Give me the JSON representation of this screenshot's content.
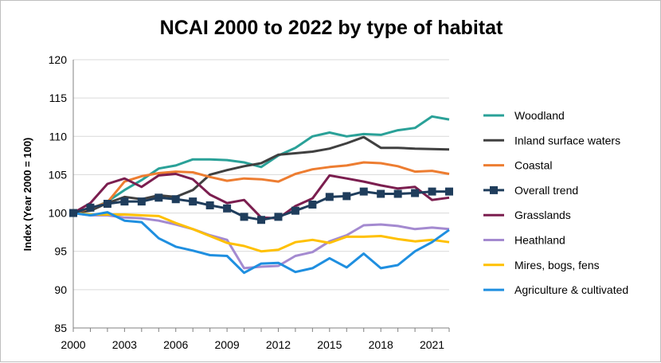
{
  "chart_data": {
    "type": "line",
    "title": "NCAI 2000 to 2022 by type of habitat",
    "ylabel": "Index (Year 2000 = 100)",
    "xlabel": "",
    "ylim": [
      85,
      120
    ],
    "xlim": [
      2000,
      2022
    ],
    "yticks": [
      85,
      90,
      95,
      100,
      105,
      110,
      115,
      120
    ],
    "xticks": [
      2000,
      2003,
      2006,
      2009,
      2012,
      2015,
      2018,
      2021
    ],
    "grid": "horizontal",
    "legend_position": "right",
    "x": [
      2000,
      2001,
      2002,
      2003,
      2004,
      2005,
      2006,
      2007,
      2008,
      2009,
      2010,
      2011,
      2012,
      2013,
      2014,
      2015,
      2016,
      2017,
      2018,
      2019,
      2020,
      2021,
      2022
    ],
    "series": [
      {
        "name": "Woodland",
        "color": "#2aa198",
        "values": [
          100,
          100.5,
          101.5,
          103,
          104.3,
          105.8,
          106.2,
          107,
          107,
          106.9,
          106.6,
          106,
          107.5,
          108.5,
          110,
          110.5,
          110,
          110.3,
          110.2,
          110.8,
          111.1,
          112.6,
          112.2
        ]
      },
      {
        "name": "Inland surface waters",
        "color": "#404040",
        "values": [
          100,
          100.3,
          101.3,
          102.1,
          101.8,
          102.3,
          102.1,
          103,
          105,
          105.6,
          106.1,
          106.5,
          107.6,
          107.8,
          108,
          108.4,
          109.1,
          109.9,
          108.5,
          108.5,
          108.4,
          108.35,
          108.3
        ]
      },
      {
        "name": "Coastal",
        "color": "#ed7d31",
        "values": [
          100,
          100.6,
          101.4,
          104.1,
          104.8,
          105.2,
          105.4,
          105.3,
          104.7,
          104.2,
          104.5,
          104.4,
          104.1,
          105.1,
          105.7,
          106,
          106.2,
          106.6,
          106.5,
          106.1,
          105.4,
          105.5,
          105.1
        ]
      },
      {
        "name": "Overall trend",
        "color": "#1f3d5c",
        "marker": "square",
        "values": [
          100,
          100.7,
          101.2,
          101.5,
          101.5,
          102,
          101.8,
          101.5,
          101,
          100.6,
          99.5,
          99.1,
          99.5,
          100.3,
          101.1,
          102.1,
          102.2,
          102.8,
          102.5,
          102.5,
          102.6,
          102.8,
          102.8
        ]
      },
      {
        "name": "Grasslands",
        "color": "#7b1e4f",
        "values": [
          100,
          101.3,
          103.8,
          104.5,
          103.4,
          104.9,
          105.1,
          104.4,
          102.4,
          101.3,
          101.7,
          99.4,
          99.3,
          100.9,
          101.9,
          104.9,
          104.5,
          104.1,
          103.6,
          103.2,
          103.4,
          101.7,
          102
        ]
      },
      {
        "name": "Heathland",
        "color": "#a48ad0",
        "values": [
          100,
          99.7,
          99.7,
          99.4,
          99.3,
          99.0,
          98.5,
          97.9,
          97.1,
          96.5,
          92.8,
          93.0,
          93.1,
          94.4,
          94.9,
          96.3,
          97.1,
          98.4,
          98.5,
          98.3,
          97.9,
          98.1,
          97.9
        ]
      },
      {
        "name": "Mires, bogs, fens",
        "color": "#ffc000",
        "values": [
          100,
          99.8,
          99.8,
          99.8,
          99.7,
          99.6,
          98.7,
          97.9,
          97.0,
          96.1,
          95.7,
          95.0,
          95.2,
          96.2,
          96.5,
          96.1,
          96.9,
          96.9,
          97.0,
          96.6,
          96.3,
          96.5,
          96.2
        ]
      },
      {
        "name": "Agriculture & cultivated",
        "color": "#1f8fe0",
        "values": [
          100,
          99.7,
          100.1,
          99.0,
          98.8,
          96.7,
          95.6,
          95.1,
          94.5,
          94.4,
          92.2,
          93.4,
          93.5,
          92.3,
          92.8,
          94.1,
          92.9,
          94.7,
          92.8,
          93.2,
          95.0,
          96.2,
          97.8
        ]
      }
    ]
  }
}
